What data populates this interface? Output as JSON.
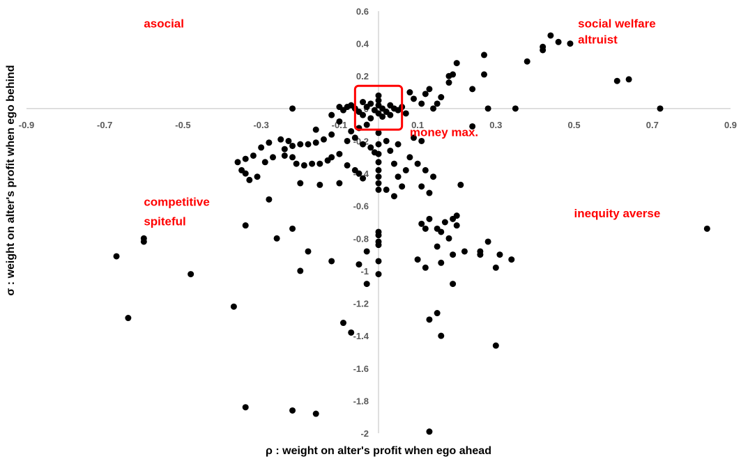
{
  "chart_data": {
    "type": "scatter",
    "title": "",
    "xlabel": "ρ : weight on alter's profit when ego ahead",
    "ylabel": "σ : weight on alter's profit when ego behind",
    "xlim": [
      -0.9,
      0.9
    ],
    "ylim": [
      -2,
      0.6
    ],
    "x_ticks": [
      "-0.9",
      "-0.7",
      "-0.5",
      "-0.3",
      "-0.1",
      "0.1",
      "0.3",
      "0.5",
      "0.7",
      "0.9"
    ],
    "y_ticks": [
      "0.6",
      "0.4",
      "0.2",
      "0",
      "-0.2",
      "-0.4",
      "-0.6",
      "-0.8",
      "-1",
      "-1.2",
      "-1.4",
      "-1.6",
      "-1.8",
      "-2"
    ],
    "grid": false,
    "marker_color": "#000000",
    "highlight_color": "#ff0000",
    "annotation_color": "#ff0000",
    "annotations": [
      {
        "text": "asocial",
        "x": -0.6,
        "y": 0.5
      },
      {
        "text": "social welfare",
        "x": 0.51,
        "y": 0.5
      },
      {
        "text": "altruist",
        "x": 0.51,
        "y": 0.4
      },
      {
        "text": "money max.",
        "x": 0.08,
        "y": -0.17
      },
      {
        "text": "competitive",
        "x": -0.6,
        "y": -0.6
      },
      {
        "text": "spiteful",
        "x": -0.6,
        "y": -0.72
      },
      {
        "text": "inequity averse",
        "x": 0.5,
        "y": -0.67
      }
    ],
    "highlight_box": {
      "x0": -0.06,
      "x1": 0.06,
      "y0": -0.13,
      "y1": 0.14
    },
    "series": [
      {
        "points": [
          [
            0.44,
            0.45
          ],
          [
            0.46,
            0.41
          ],
          [
            0.49,
            0.4
          ],
          [
            0.42,
            0.38
          ],
          [
            0.42,
            0.36
          ],
          [
            0.38,
            0.29
          ],
          [
            0.61,
            0.17
          ],
          [
            0.64,
            0.18
          ],
          [
            0.72,
            0.0
          ],
          [
            0.27,
            0.33
          ],
          [
            0.2,
            0.28
          ],
          [
            0.27,
            0.21
          ],
          [
            0.19,
            0.21
          ],
          [
            0.18,
            0.2
          ],
          [
            0.18,
            0.16
          ],
          [
            0.24,
            0.12
          ],
          [
            0.13,
            0.12
          ],
          [
            0.12,
            0.09
          ],
          [
            0.16,
            0.07
          ],
          [
            0.09,
            0.06
          ],
          [
            0.11,
            0.03
          ],
          [
            0.15,
            0.03
          ],
          [
            0.14,
            0.0
          ],
          [
            0.28,
            0.0
          ],
          [
            0.35,
            0.0
          ],
          [
            0.24,
            -0.11
          ],
          [
            0.08,
            0.1
          ],
          [
            0.0,
            0.08
          ],
          [
            0.0,
            0.05
          ],
          [
            0.0,
            0.02
          ],
          [
            -0.02,
            0.03
          ],
          [
            -0.04,
            0.04
          ],
          [
            -0.03,
            0.01
          ],
          [
            -0.01,
            -0.01
          ],
          [
            0.01,
            0.0
          ],
          [
            0.03,
            0.02
          ],
          [
            0.04,
            0.0
          ],
          [
            0.02,
            -0.02
          ],
          [
            0.05,
            -0.01
          ],
          [
            -0.05,
            -0.02
          ],
          [
            -0.06,
            0.0
          ],
          [
            -0.07,
            0.02
          ],
          [
            -0.08,
            0.01
          ],
          [
            -0.09,
            -0.01
          ],
          [
            -0.1,
            0.01
          ],
          [
            -0.12,
            -0.04
          ],
          [
            0.06,
            0.01
          ],
          [
            0.07,
            -0.03
          ],
          [
            -0.04,
            -0.04
          ],
          [
            0.03,
            -0.04
          ],
          [
            0.0,
            -0.03
          ],
          [
            0.01,
            -0.05
          ],
          [
            -0.02,
            -0.06
          ],
          [
            -0.03,
            -0.1
          ],
          [
            -0.05,
            -0.12
          ],
          [
            -0.07,
            -0.14
          ],
          [
            -0.06,
            -0.18
          ],
          [
            -0.1,
            -0.08
          ],
          [
            -0.12,
            -0.16
          ],
          [
            -0.14,
            -0.19
          ],
          [
            -0.16,
            -0.21
          ],
          [
            -0.18,
            -0.22
          ],
          [
            -0.2,
            -0.22
          ],
          [
            -0.22,
            -0.23
          ],
          [
            -0.24,
            -0.25
          ],
          [
            -0.25,
            -0.19
          ],
          [
            -0.28,
            -0.21
          ],
          [
            -0.3,
            -0.24
          ],
          [
            -0.32,
            -0.29
          ],
          [
            -0.34,
            -0.31
          ],
          [
            -0.36,
            -0.33
          ],
          [
            -0.35,
            -0.38
          ],
          [
            -0.34,
            -0.4
          ],
          [
            -0.33,
            -0.44
          ],
          [
            -0.31,
            -0.42
          ],
          [
            -0.29,
            -0.33
          ],
          [
            -0.27,
            -0.3
          ],
          [
            -0.24,
            -0.29
          ],
          [
            -0.22,
            -0.3
          ],
          [
            -0.21,
            -0.34
          ],
          [
            -0.19,
            -0.35
          ],
          [
            -0.17,
            -0.34
          ],
          [
            -0.15,
            -0.34
          ],
          [
            -0.13,
            -0.32
          ],
          [
            -0.12,
            -0.3
          ],
          [
            -0.1,
            -0.28
          ],
          [
            -0.08,
            -0.35
          ],
          [
            -0.06,
            -0.38
          ],
          [
            -0.05,
            -0.4
          ],
          [
            -0.04,
            -0.43
          ],
          [
            -0.1,
            -0.46
          ],
          [
            -0.15,
            -0.47
          ],
          [
            -0.2,
            -0.46
          ],
          [
            -0.23,
            -0.2
          ],
          [
            -0.16,
            -0.13
          ],
          [
            -0.22,
            0.0
          ],
          [
            -0.08,
            -0.2
          ],
          [
            -0.04,
            -0.22
          ],
          [
            -0.02,
            -0.24
          ],
          [
            -0.01,
            -0.27
          ],
          [
            0.0,
            -0.15
          ],
          [
            0.0,
            -0.22
          ],
          [
            0.0,
            -0.28
          ],
          [
            0.0,
            -0.33
          ],
          [
            0.0,
            -0.38
          ],
          [
            0.0,
            -0.42
          ],
          [
            0.0,
            -0.46
          ],
          [
            0.0,
            -0.5
          ],
          [
            0.0,
            -0.76
          ],
          [
            0.0,
            -0.78
          ],
          [
            0.0,
            -0.82
          ],
          [
            0.0,
            -0.84
          ],
          [
            0.0,
            -0.94
          ],
          [
            0.0,
            -1.02
          ],
          [
            0.02,
            -0.2
          ],
          [
            0.03,
            -0.26
          ],
          [
            0.04,
            -0.34
          ],
          [
            0.05,
            -0.42
          ],
          [
            0.06,
            -0.48
          ],
          [
            0.02,
            -0.5
          ],
          [
            0.04,
            -0.54
          ],
          [
            0.07,
            -0.38
          ],
          [
            0.08,
            -0.3
          ],
          [
            0.09,
            -0.18
          ],
          [
            0.11,
            -0.2
          ],
          [
            0.1,
            -0.34
          ],
          [
            0.12,
            -0.38
          ],
          [
            0.11,
            -0.48
          ],
          [
            0.14,
            -0.42
          ],
          [
            0.13,
            -0.52
          ],
          [
            0.05,
            -0.22
          ],
          [
            0.13,
            -0.68
          ],
          [
            0.15,
            -0.74
          ],
          [
            0.17,
            -0.7
          ],
          [
            0.19,
            -0.68
          ],
          [
            0.2,
            -0.72
          ],
          [
            0.2,
            -0.66
          ],
          [
            0.16,
            -0.76
          ],
          [
            0.12,
            -0.74
          ],
          [
            0.11,
            -0.71
          ],
          [
            0.21,
            -0.47
          ],
          [
            0.15,
            -0.85
          ],
          [
            0.18,
            -0.8
          ],
          [
            0.22,
            -0.88
          ],
          [
            0.26,
            -0.9
          ],
          [
            0.28,
            -0.82
          ],
          [
            0.31,
            -0.9
          ],
          [
            0.34,
            -0.93
          ],
          [
            0.3,
            -0.98
          ],
          [
            0.26,
            -0.88
          ],
          [
            0.19,
            -0.9
          ],
          [
            0.16,
            -0.95
          ],
          [
            0.1,
            -0.93
          ],
          [
            0.12,
            -0.98
          ],
          [
            0.19,
            -1.08
          ],
          [
            -0.03,
            -0.88
          ],
          [
            -0.05,
            -0.96
          ],
          [
            -0.03,
            -1.08
          ],
          [
            -0.09,
            -1.32
          ],
          [
            -0.07,
            -1.38
          ],
          [
            0.13,
            -1.3
          ],
          [
            0.15,
            -1.26
          ],
          [
            0.16,
            -1.4
          ],
          [
            0.3,
            -1.46
          ],
          [
            0.13,
            -1.99
          ],
          [
            -0.34,
            -0.72
          ],
          [
            -0.26,
            -0.8
          ],
          [
            -0.22,
            -0.74
          ],
          [
            -0.2,
            -1.0
          ],
          [
            -0.18,
            -0.88
          ],
          [
            -0.12,
            -0.94
          ],
          [
            -0.28,
            -0.56
          ],
          [
            -0.37,
            -1.22
          ],
          [
            -0.48,
            -1.02
          ],
          [
            -0.6,
            -0.8
          ],
          [
            -0.6,
            -0.82
          ],
          [
            -0.67,
            -0.91
          ],
          [
            -0.64,
            -1.29
          ],
          [
            -0.34,
            -1.84
          ],
          [
            -0.22,
            -1.86
          ],
          [
            -0.16,
            -1.88
          ],
          [
            0.84,
            -0.74
          ]
        ]
      }
    ]
  }
}
